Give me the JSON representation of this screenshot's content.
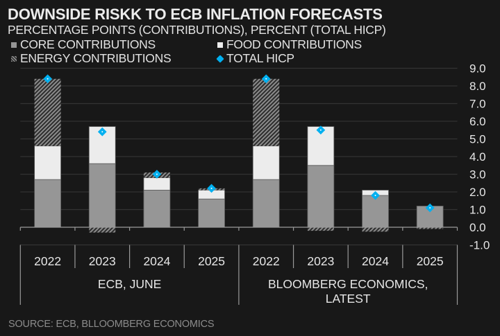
{
  "title": "DOWNSIDE RISKK TO ECB INFLATION FORECASTS",
  "subtitle": "PERCENTAGE POINTS (CONTRIBUTIONS), PERCENT (TOTAL HICP)",
  "legend": [
    {
      "key": "core",
      "label": "CORE CONTRIBUTIONS",
      "icon": "square-swatch",
      "color": "#969696"
    },
    {
      "key": "food",
      "label": "FOOD CONTRIBUTIONS",
      "icon": "square-swatch",
      "color": "#ececec"
    },
    {
      "key": "energy",
      "label": "ENERGY CONTRIBUTIONS",
      "icon": "hatched-swatch",
      "color": "#8a8a8a"
    },
    {
      "key": "hicp",
      "label": "TOTAL HICP",
      "icon": "diamond-marker",
      "color": "#00b0f0"
    }
  ],
  "source": "SOURCE: ECB, BLLOOMBERG ECONOMICS",
  "chart_data": {
    "type": "bar",
    "stacked": true,
    "title": "DOWNSIDE RISKK TO ECB INFLATION FORECASTS",
    "subtitle": "PERCENTAGE POINTS (CONTRIBUTIONS), PERCENT (TOTAL HICP)",
    "xlabel": "",
    "ylabel": "",
    "ylim": [
      -1.0,
      9.0
    ],
    "yticks": [
      "9.0",
      "8.0",
      "7.0",
      "6.0",
      "5.0",
      "4.0",
      "3.0",
      "2.0",
      "1.0",
      "0.0",
      "-1.0"
    ],
    "y_axis_position": "right",
    "grid": true,
    "legend_position": "top-left",
    "groups": [
      {
        "label": "ECB, JUNE",
        "categories": [
          "2022",
          "2023",
          "2024",
          "2025"
        ]
      },
      {
        "label": "BLOOMBERG ECONOMICS, LATEST",
        "categories": [
          "2022",
          "2023",
          "2024",
          "2025"
        ]
      }
    ],
    "categories": [
      "2022",
      "2023",
      "2024",
      "2025",
      "2022",
      "2023",
      "2024",
      "2025"
    ],
    "series": [
      {
        "name": "CORE CONTRIBUTIONS",
        "type": "bar",
        "color": "#969696",
        "values": [
          2.7,
          3.6,
          2.1,
          1.6,
          2.7,
          3.5,
          1.8,
          1.2
        ]
      },
      {
        "name": "FOOD CONTRIBUTIONS",
        "type": "bar",
        "color": "#ececec",
        "values": [
          1.9,
          2.1,
          0.7,
          0.5,
          1.9,
          2.2,
          0.3,
          0.0
        ]
      },
      {
        "name": "ENERGY CONTRIBUTIONS",
        "type": "bar",
        "pattern": "hatched",
        "color": "#8a8a8a",
        "values": [
          3.8,
          -0.3,
          0.3,
          0.1,
          3.8,
          -0.2,
          -0.25,
          -0.1
        ]
      },
      {
        "name": "TOTAL HICP",
        "type": "marker",
        "color": "#00b0f0",
        "values": [
          8.4,
          5.4,
          3.0,
          2.2,
          8.4,
          5.5,
          1.8,
          1.1
        ]
      }
    ]
  }
}
